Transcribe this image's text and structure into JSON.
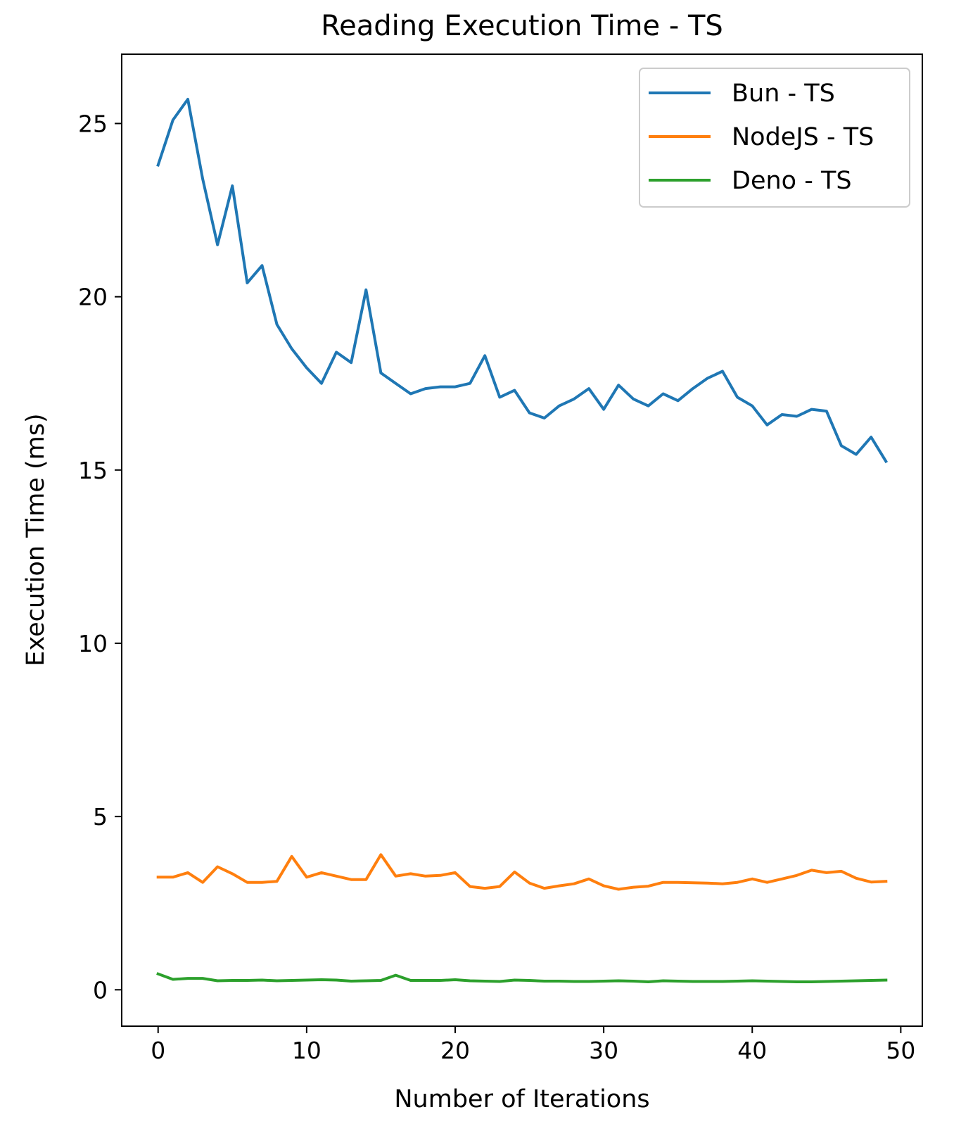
{
  "chart_data": {
    "type": "line",
    "title": "Reading Execution Time - TS",
    "xlabel": "Number of Iterations",
    "ylabel": "Execution Time (ms)",
    "xlim": [
      -2.45,
      51.45
    ],
    "ylim": [
      -1.05,
      27.0
    ],
    "xticks": [
      0,
      10,
      20,
      30,
      40,
      50
    ],
    "yticks": [
      0,
      5,
      10,
      15,
      20,
      25
    ],
    "legend_position": "top-right",
    "grid": false,
    "x": [
      0,
      1,
      2,
      3,
      4,
      5,
      6,
      7,
      8,
      9,
      10,
      11,
      12,
      13,
      14,
      15,
      16,
      17,
      18,
      19,
      20,
      21,
      22,
      23,
      24,
      25,
      26,
      27,
      28,
      29,
      30,
      31,
      32,
      33,
      34,
      35,
      36,
      37,
      38,
      39,
      40,
      41,
      42,
      43,
      44,
      45,
      46,
      47,
      48,
      49
    ],
    "series": [
      {
        "name": "Bun - TS",
        "color": "#1f77b4",
        "values": [
          23.8,
          25.1,
          25.7,
          23.4,
          21.5,
          23.2,
          20.4,
          20.9,
          19.2,
          18.5,
          17.95,
          17.5,
          18.4,
          18.1,
          20.2,
          17.8,
          17.5,
          17.2,
          17.35,
          17.4,
          17.4,
          17.5,
          18.3,
          17.1,
          17.3,
          16.65,
          16.5,
          16.85,
          17.05,
          17.35,
          16.75,
          17.45,
          17.05,
          16.85,
          17.2,
          17.0,
          17.35,
          17.65,
          17.85,
          17.1,
          16.85,
          16.3,
          16.6,
          16.55,
          16.75,
          16.7,
          15.7,
          15.45,
          15.95,
          15.25
        ]
      },
      {
        "name": "NodeJS - TS",
        "color": "#ff7f0e",
        "values": [
          3.25,
          3.25,
          3.38,
          3.1,
          3.55,
          3.35,
          3.1,
          3.1,
          3.13,
          3.85,
          3.25,
          3.38,
          3.28,
          3.18,
          3.18,
          3.9,
          3.28,
          3.35,
          3.28,
          3.3,
          3.38,
          2.98,
          2.93,
          2.98,
          3.4,
          3.08,
          2.93,
          3.0,
          3.06,
          3.2,
          3.0,
          2.9,
          2.96,
          2.99,
          3.1,
          3.1,
          3.09,
          3.08,
          3.06,
          3.1,
          3.2,
          3.1,
          3.2,
          3.3,
          3.45,
          3.38,
          3.42,
          3.22,
          3.11,
          3.13
        ]
      },
      {
        "name": "Deno - TS",
        "color": "#2ca02c",
        "values": [
          0.46,
          0.3,
          0.33,
          0.33,
          0.26,
          0.27,
          0.27,
          0.28,
          0.26,
          0.27,
          0.28,
          0.29,
          0.28,
          0.25,
          0.26,
          0.27,
          0.42,
          0.27,
          0.27,
          0.27,
          0.29,
          0.26,
          0.25,
          0.24,
          0.28,
          0.27,
          0.25,
          0.25,
          0.24,
          0.24,
          0.25,
          0.26,
          0.25,
          0.23,
          0.26,
          0.25,
          0.24,
          0.24,
          0.24,
          0.25,
          0.26,
          0.25,
          0.24,
          0.23,
          0.23,
          0.24,
          0.25,
          0.26,
          0.27,
          0.28
        ]
      }
    ]
  }
}
